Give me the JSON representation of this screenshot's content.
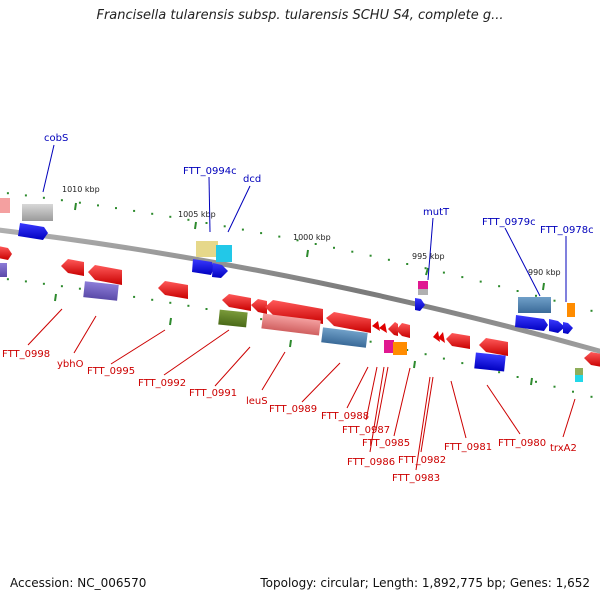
{
  "header": {
    "title": "Francisella tularensis subsp. tularensis SCHU S4, complete g..."
  },
  "footer": {
    "accession": "Accession: NC_006570",
    "summary": "Topology: circular; Length: 1,892,775 bp; Genes: 1,652"
  },
  "scale": {
    "ticks": [
      {
        "label": "1010 kbp"
      },
      {
        "label": "1005 kbp"
      },
      {
        "label": "1000 kbp"
      },
      {
        "label": "995 kbp"
      },
      {
        "label": "990 kbp"
      }
    ]
  },
  "colors": {
    "top_label": "#0000bb",
    "bottom_label": "#cc0000",
    "backbone": "#888888",
    "dot": "#2d8a2d"
  },
  "genes_top": [
    {
      "label": "cobS"
    },
    {
      "label": "FTT_0994c"
    },
    {
      "label": "dcd"
    },
    {
      "label": "mutT"
    },
    {
      "label": "FTT_0979c"
    },
    {
      "label": "FTT_0978c"
    }
  ],
  "genes_bottom": [
    {
      "label": "FTT_0998"
    },
    {
      "label": "ybhO"
    },
    {
      "label": "FTT_0995"
    },
    {
      "label": "FTT_0992"
    },
    {
      "label": "FTT_0991"
    },
    {
      "label": "leuS"
    },
    {
      "label": "FTT_0989"
    },
    {
      "label": "FTT_0988"
    },
    {
      "label": "FTT_0987"
    },
    {
      "label": "FTT_0985"
    },
    {
      "label": "FTT_0986"
    },
    {
      "label": "FTT_0982"
    },
    {
      "label": "FTT_0983"
    },
    {
      "label": "FTT_0981"
    },
    {
      "label": "FTT_0980"
    },
    {
      "label": "trxA2"
    }
  ]
}
